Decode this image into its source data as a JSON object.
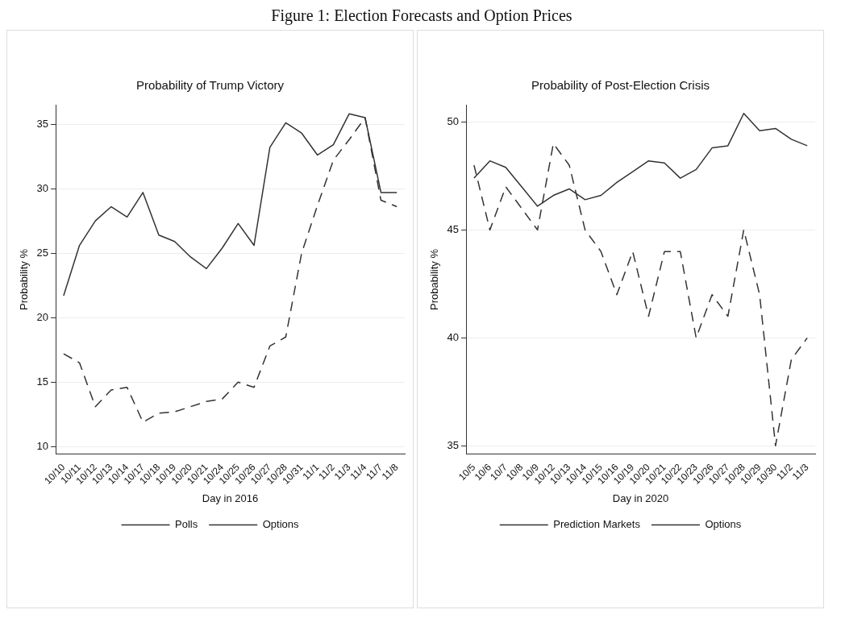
{
  "chart_data": [
    {
      "type": "line",
      "title": "Probability of Trump Victory",
      "xlabel": "Day in 2016",
      "ylabel": "Probability %",
      "annotations": [
        "Figure 1: Election Forecasts and Option Prices"
      ],
      "categories": [
        "10/10",
        "10/11",
        "10/12",
        "10/13",
        "10/14",
        "10/17",
        "10/18",
        "10/19",
        "10/20",
        "10/21",
        "10/24",
        "10/25",
        "10/26",
        "10/27",
        "10/28",
        "10/31",
        "11/1",
        "11/2",
        "11/3",
        "11/4",
        "11/7",
        "11/8"
      ],
      "series": [
        {
          "name": "Polls",
          "color": "#333333",
          "line_style": "dashed",
          "values": [
            17.2,
            16.5,
            13.1,
            14.4,
            14.6,
            11.9,
            12.6,
            12.7,
            13.1,
            13.5,
            13.7,
            15.0,
            14.6,
            17.8,
            18.5,
            25.0,
            28.7,
            32.2,
            33.8,
            35.5,
            29.1,
            28.6
          ]
        },
        {
          "name": "Options",
          "color": "#333333",
          "line_style": "solid",
          "values": [
            21.7,
            25.6,
            27.5,
            28.6,
            27.8,
            29.7,
            26.4,
            25.9,
            24.7,
            23.8,
            25.4,
            27.3,
            25.6,
            33.2,
            35.1,
            34.3,
            32.6,
            33.4,
            35.8,
            35.5,
            29.7,
            29.7
          ]
        }
      ],
      "ylim": [
        9.4,
        36.5
      ],
      "yticks": [
        10,
        15,
        20,
        25,
        30,
        35
      ],
      "grid": "y",
      "legend": "bottom",
      "marker": "none"
    },
    {
      "type": "line",
      "title": "Probability of Post-Election Crisis",
      "xlabel": "Day in 2020",
      "ylabel": "Probability %",
      "categories": [
        "10/5",
        "10/6",
        "10/7",
        "10/8",
        "10/9",
        "10/12",
        "10/13",
        "10/14",
        "10/15",
        "10/16",
        "10/19",
        "10/20",
        "10/21",
        "10/22",
        "10/23",
        "10/26",
        "10/27",
        "10/28",
        "10/29",
        "10/30",
        "11/2",
        "11/3"
      ],
      "series": [
        {
          "name": "Prediction Markets",
          "color": "#333333",
          "line_style": "dashed",
          "values": [
            48,
            45,
            47,
            46,
            45,
            49,
            48,
            45,
            44,
            42,
            44,
            41,
            44,
            44,
            40,
            42,
            41,
            45,
            42,
            35,
            39,
            40
          ]
        },
        {
          "name": "Options",
          "color": "#333333",
          "line_style": "solid",
          "values": [
            47.4,
            48.2,
            47.9,
            47.0,
            46.1,
            46.6,
            46.9,
            46.4,
            46.6,
            47.2,
            47.7,
            48.2,
            48.1,
            47.4,
            47.8,
            48.8,
            48.9,
            50.4,
            49.6,
            49.7,
            49.2,
            48.9
          ]
        }
      ],
      "ylim": [
        34.6,
        50.8
      ],
      "yticks": [
        35,
        40,
        45,
        50
      ],
      "grid": "y",
      "legend": "bottom",
      "marker": "none"
    }
  ]
}
